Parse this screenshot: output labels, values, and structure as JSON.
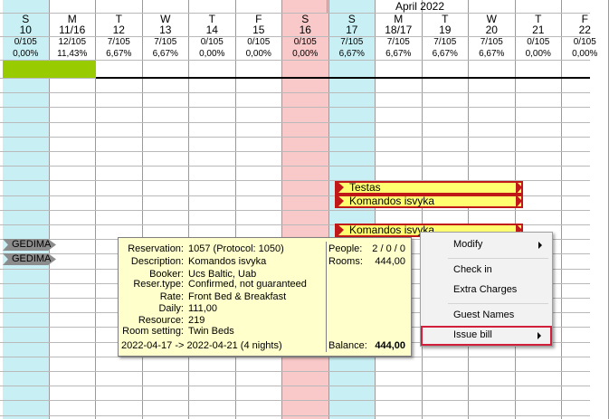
{
  "calendar": {
    "month_label": "April 2022",
    "days": [
      {
        "dow": "S",
        "day": "10",
        "occ": "0/105",
        "pct": "0,00%",
        "tone": "cyan"
      },
      {
        "dow": "M",
        "day": "11/16",
        "occ": "12/105",
        "pct": "11,43%",
        "tone": "plain"
      },
      {
        "dow": "T",
        "day": "12",
        "occ": "7/105",
        "pct": "6,67%",
        "tone": "plain"
      },
      {
        "dow": "W",
        "day": "13",
        "occ": "7/105",
        "pct": "6,67%",
        "tone": "plain"
      },
      {
        "dow": "T",
        "day": "14",
        "occ": "0/105",
        "pct": "0,00%",
        "tone": "plain"
      },
      {
        "dow": "F",
        "day": "15",
        "occ": "0/105",
        "pct": "0,00%",
        "tone": "plain"
      },
      {
        "dow": "S",
        "day": "16",
        "occ": "0/105",
        "pct": "0,00%",
        "tone": "pink"
      },
      {
        "dow": "S",
        "day": "17",
        "occ": "7/105",
        "pct": "6,67%",
        "tone": "cyan"
      },
      {
        "dow": "M",
        "day": "18/17",
        "occ": "7/105",
        "pct": "6,67%",
        "tone": "plain"
      },
      {
        "dow": "T",
        "day": "19",
        "occ": "7/105",
        "pct": "6,67%",
        "tone": "plain"
      },
      {
        "dow": "W",
        "day": "20",
        "occ": "7/105",
        "pct": "6,67%",
        "tone": "plain"
      },
      {
        "dow": "T",
        "day": "21",
        "occ": "0/105",
        "pct": "0,00%",
        "tone": "plain"
      },
      {
        "dow": "F",
        "day": "22",
        "occ": "0/105",
        "pct": "0,00%",
        "tone": "plain"
      }
    ],
    "colors": {
      "cyan": "#c8f0f4",
      "pink": "#f9c8c8",
      "green": "#99cc00",
      "booking": "#ffff70",
      "booking_border": "#c01818"
    }
  },
  "bookings": [
    {
      "label": "Testas"
    },
    {
      "label": "Komandos isvyka"
    },
    {
      "label": "Komandos isvyka"
    }
  ],
  "blocked": [
    {
      "label": "GEDIMA"
    },
    {
      "label": "GEDIMA"
    }
  ],
  "tooltip": {
    "reservation_label": "Reservation:",
    "reservation": "1057 (Protocol: 1050)",
    "description_label": "Description:",
    "description": "Komandos isvyka",
    "booker_label": "Booker:",
    "booker": "Ucs Baltic, Uab",
    "reser_type_label": "Reser.type:",
    "reser_type": "Confirmed, not guaranteed",
    "rate_label": "Rate:",
    "rate": "Front Bed & Breakfast",
    "daily_label": "Daily:",
    "daily": "111,00",
    "resource_label": "Resource:",
    "resource": "219",
    "room_setting_label": "Room setting:",
    "room_setting": "Twin Beds",
    "dates": "2022-04-17 -> 2022-04-21 (4 nights)",
    "people_label": "People:",
    "people": "2 / 0 / 0",
    "rooms_label": "Rooms:",
    "rooms": "444,00",
    "balance_label": "Balance:",
    "balance": "444,00"
  },
  "context_menu": {
    "modify": "Modify",
    "check_in": "Check in",
    "extra_charges": "Extra Charges",
    "guest_names": "Guest Names",
    "issue_bill": "Issue bill"
  }
}
